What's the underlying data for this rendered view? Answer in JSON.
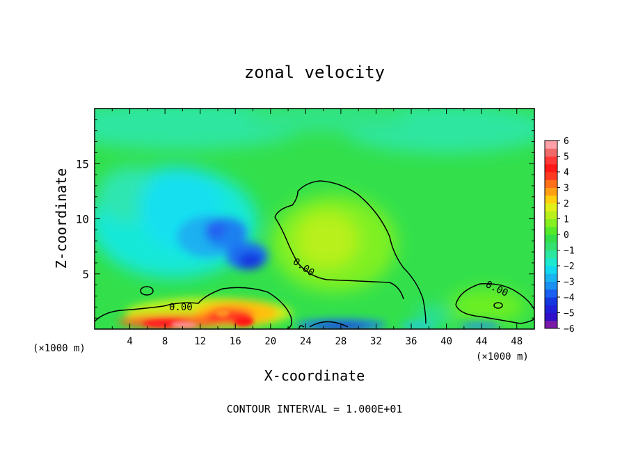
{
  "chart_data": {
    "type": "heatmap",
    "title": "zonal velocity",
    "xlabel": "X-coordinate",
    "ylabel": "Z-coordinate",
    "x_unit_note": "(×1000 m)",
    "y_unit_note": "(×1000 m)",
    "xlim": [
      0,
      50
    ],
    "ylim": [
      0,
      20
    ],
    "x_ticks": [
      "4",
      "8",
      "12",
      "16",
      "20",
      "24",
      "28",
      "32",
      "36",
      "40",
      "44",
      "48"
    ],
    "y_ticks": [
      "5",
      "10",
      "15"
    ],
    "colorbar_ticks": [
      "6",
      "5",
      "4",
      "3",
      "2",
      "1",
      "0",
      "−1",
      "−2",
      "−3",
      "−4",
      "−5",
      "−6"
    ],
    "colorbar_range": [
      -6,
      6
    ],
    "contour_labels": [
      "0.00",
      "0.00",
      "0.00"
    ],
    "footnote": "CONTOUR INTERVAL = 1.000E+01",
    "features": [
      {
        "name": "negative core",
        "x": 16,
        "z": 8,
        "value": -4.5
      },
      {
        "name": "negative core",
        "x": 18.5,
        "z": 6.5,
        "value": -5
      },
      {
        "name": "positive core",
        "x": 26,
        "z": 8,
        "value": 1.5
      },
      {
        "name": "surface jet",
        "x": 9,
        "z": 0.5,
        "value": 5.5
      },
      {
        "name": "surface jet",
        "x": 15.5,
        "z": 1.5,
        "value": 4.5
      },
      {
        "name": "surface negative",
        "x": 28,
        "z": 0.3,
        "value": -4.5
      },
      {
        "name": "surface positive",
        "x": 45,
        "z": 2,
        "value": 1.2
      }
    ]
  }
}
